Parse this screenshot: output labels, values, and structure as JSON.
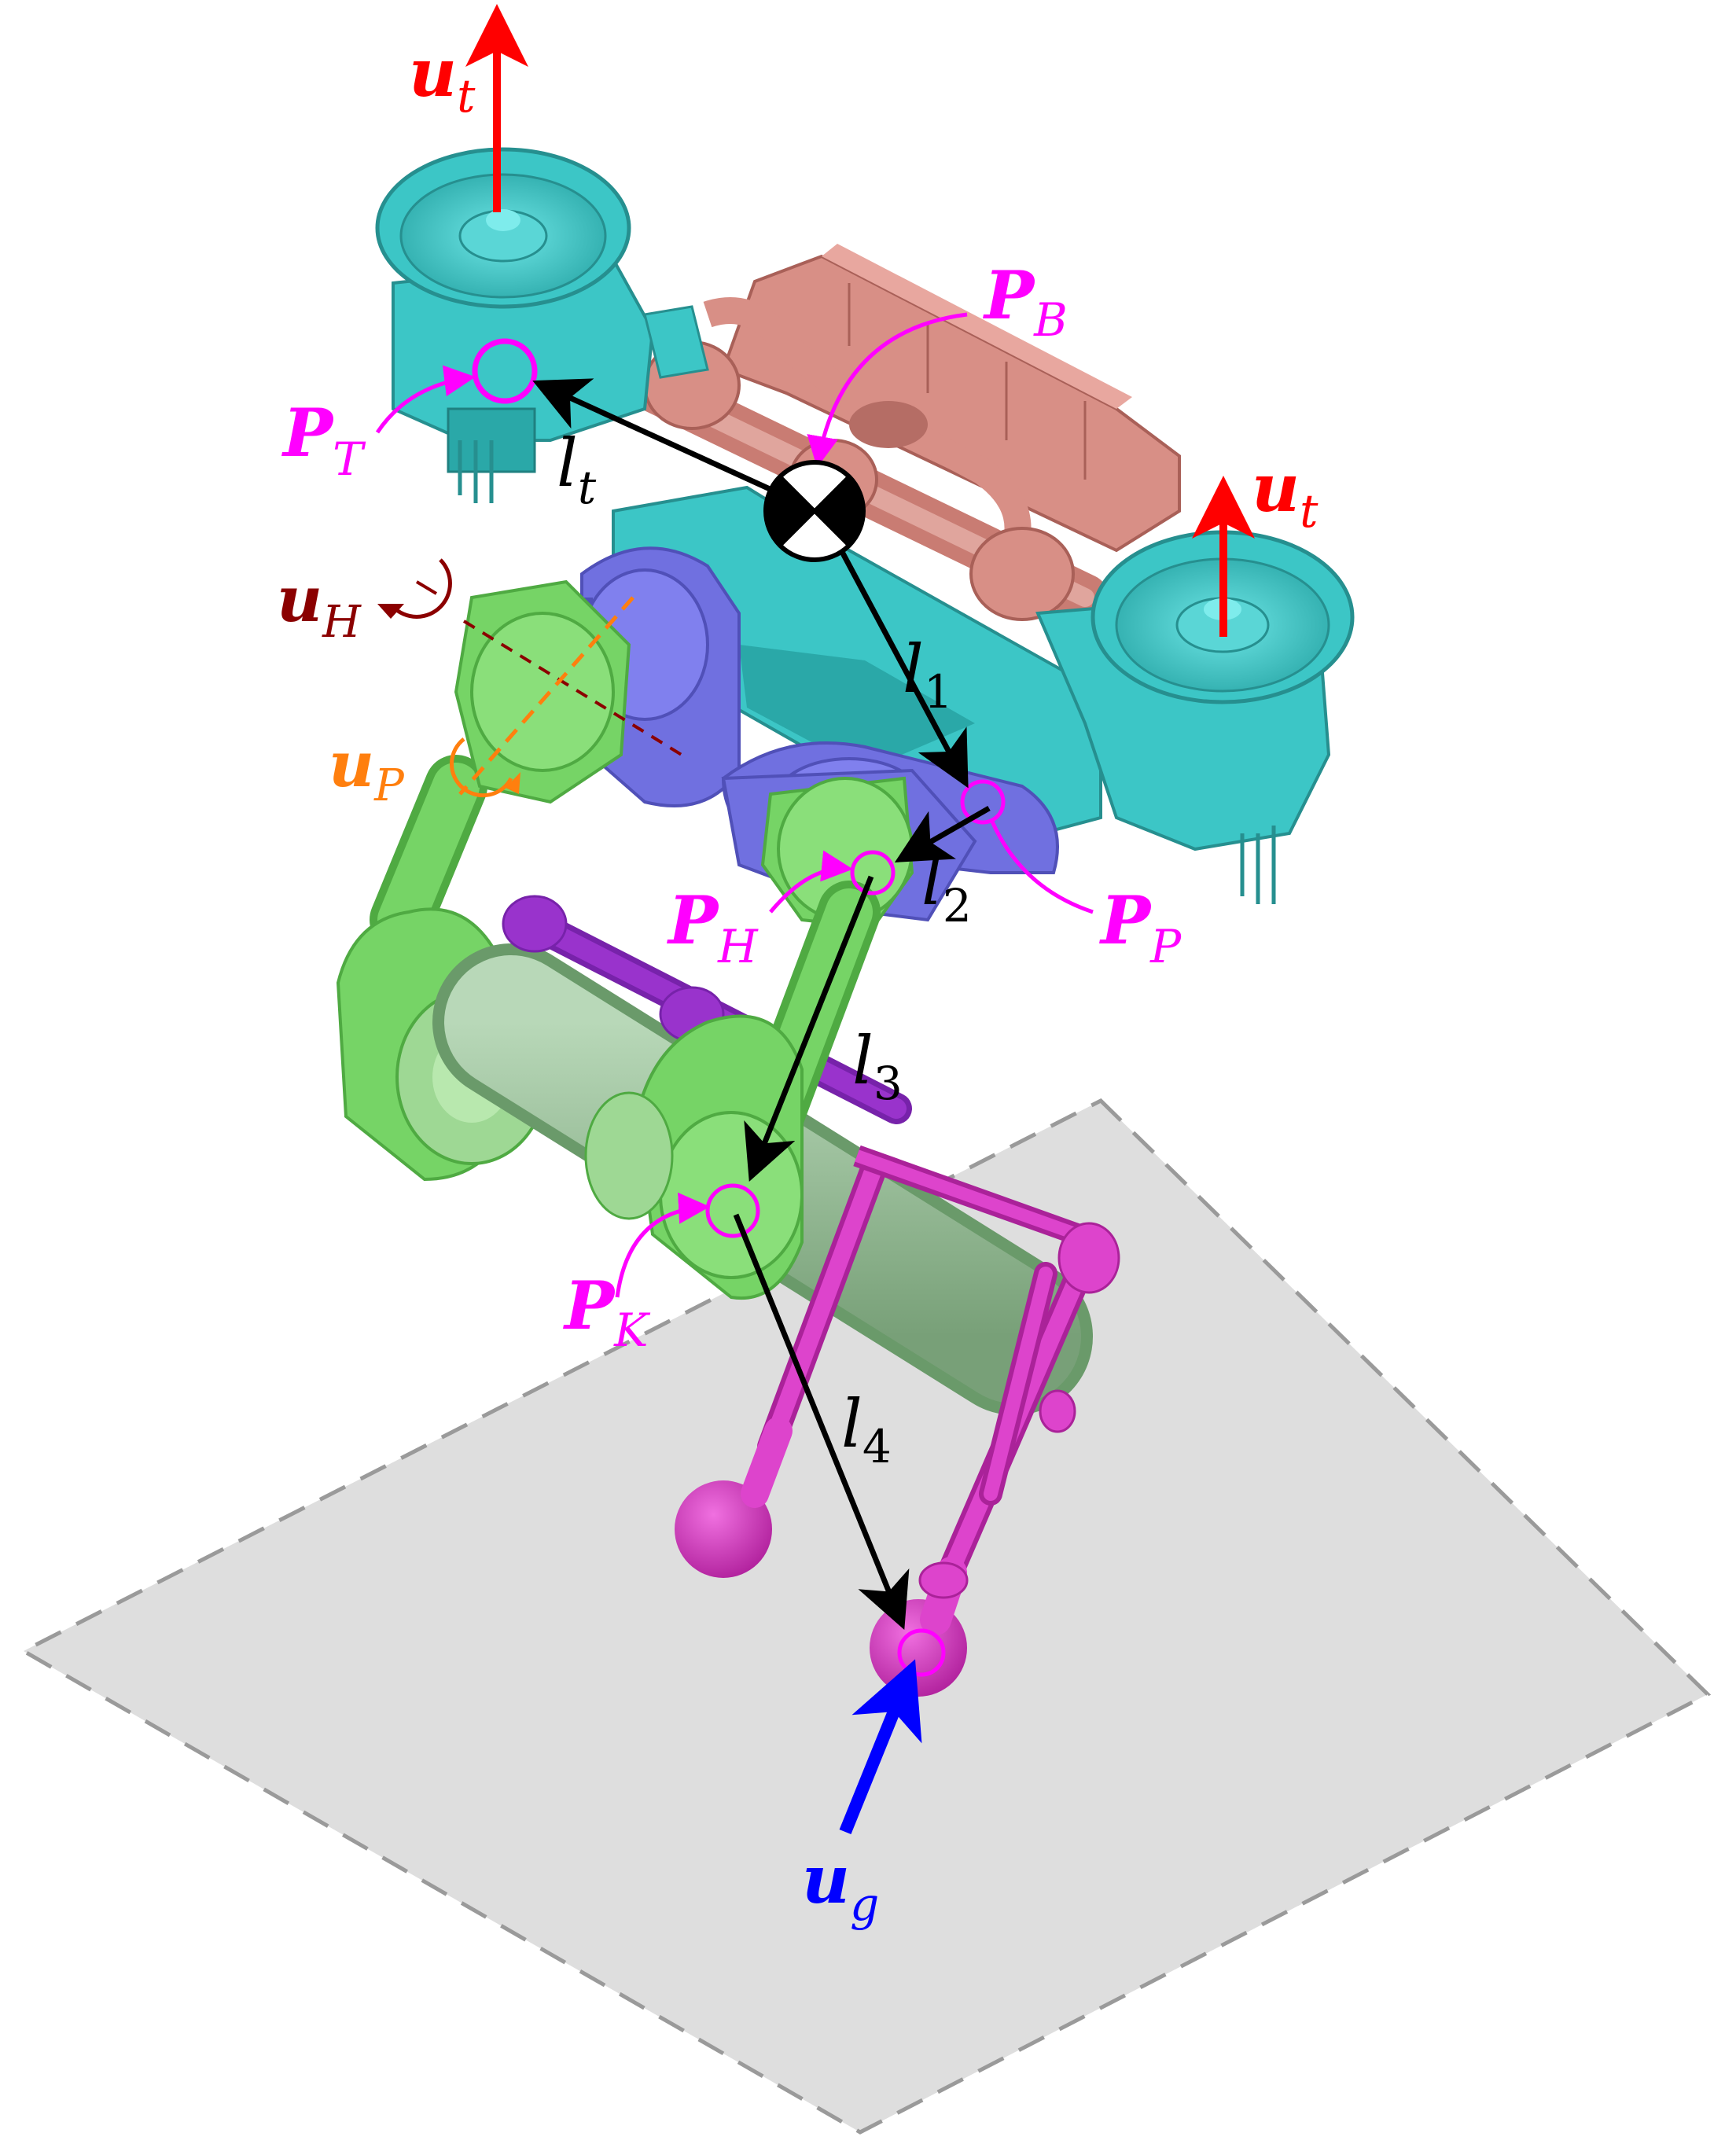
{
  "colors": {
    "ground": "#dedede",
    "ground_border": "#9a9a9a",
    "thruster": "#3cc6c6",
    "thruster_dark": "#279c9c",
    "body": "#d88f86",
    "body_dark": "#b56d65",
    "hip": "#7070e0",
    "hip_dark": "#5050b8",
    "leg": "#76d466",
    "leg_dark": "#4faa42",
    "leg_light": "#9ed894",
    "shaft": "#a0c8a0",
    "lower_leg": "#dd44cc",
    "lower_leg_dark": "#aa2299",
    "purple": "#9933cc",
    "magenta": "#ff00ff",
    "thrust_red": "#ff0000",
    "u_h_color": "#8b0000",
    "u_p_color": "#ff7f0e",
    "u_g_color": "#0000ff",
    "vector_black": "#000000"
  },
  "labels": {
    "u_t_left": {
      "base": "u",
      "sub": "t"
    },
    "u_t_right": {
      "base": "u",
      "sub": "t"
    },
    "p_b": {
      "base": "P",
      "sub": "B"
    },
    "p_t": {
      "base": "P",
      "sub": "T"
    },
    "l_t": {
      "base": "l",
      "sub": "t"
    },
    "u_h": {
      "base": "u",
      "sub": "H"
    },
    "u_p": {
      "base": "u",
      "sub": "P"
    },
    "l_1": {
      "base": "l",
      "sub": "1"
    },
    "l_2": {
      "base": "l",
      "sub": "2"
    },
    "p_h": {
      "base": "P",
      "sub": "H"
    },
    "p_p": {
      "base": "P",
      "sub": "P"
    },
    "l_3": {
      "base": "l",
      "sub": "3"
    },
    "p_k": {
      "base": "P",
      "sub": "K"
    },
    "l_4": {
      "base": "l",
      "sub": "4"
    },
    "u_g": {
      "base": "u",
      "sub": "g"
    }
  }
}
